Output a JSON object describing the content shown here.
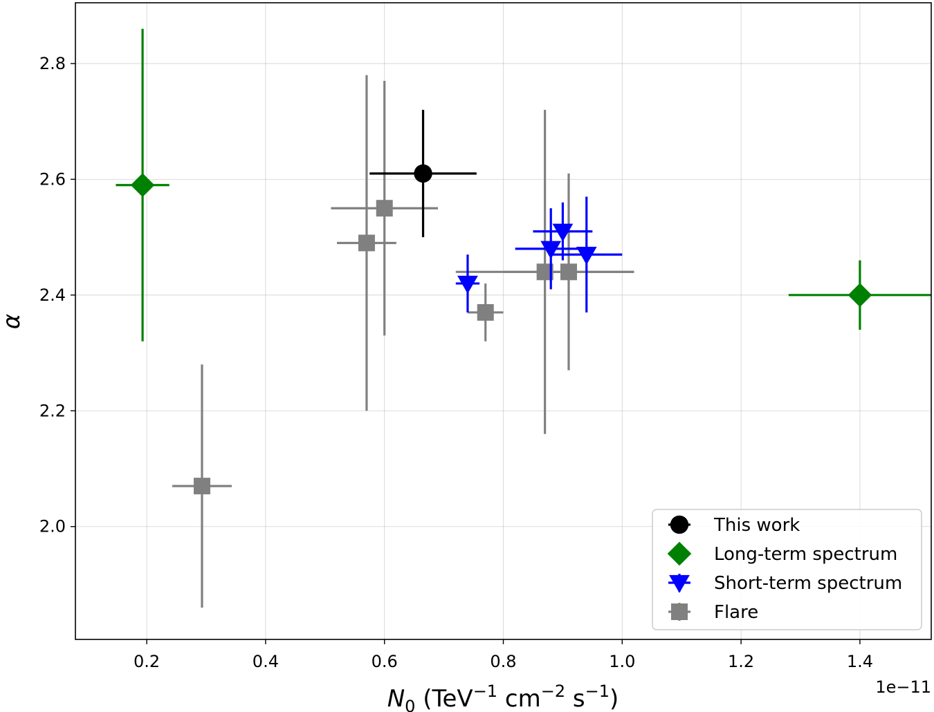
{
  "chart_data": {
    "type": "scatter",
    "title": "",
    "xlabel": {
      "base": "N",
      "sub": "0",
      "unit_parts": [
        {
          "text": " (TeV"
        },
        {
          "sup": "−1"
        },
        {
          "text": " cm"
        },
        {
          "sup": "−2"
        },
        {
          "text": " s"
        },
        {
          "sup": "−1"
        },
        {
          "text": ")"
        }
      ]
    },
    "ylabel": "α",
    "x_offset_label": "1e−11",
    "xlim": [
      0.08,
      1.52
    ],
    "ylim": [
      1.805,
      2.905
    ],
    "x_ticks": [
      0.2,
      0.4,
      0.6,
      0.8,
      1.0,
      1.2,
      1.4
    ],
    "x_tick_labels": [
      "0.2",
      "0.4",
      "0.6",
      "0.8",
      "1.0",
      "1.2",
      "1.4"
    ],
    "y_ticks": [
      2.0,
      2.2,
      2.4,
      2.6,
      2.8
    ],
    "y_tick_labels": [
      "2.0",
      "2.2",
      "2.4",
      "2.6",
      "2.8"
    ],
    "grid": true,
    "legend_position": "lower-right",
    "series": [
      {
        "name": "This work",
        "color": "#000000",
        "marker": "circle",
        "points": [
          {
            "x": 0.665,
            "y": 2.61,
            "xerr": 0.09,
            "yerr": 0.11
          }
        ]
      },
      {
        "name": "Long-term spectrum",
        "color": "#008000",
        "marker": "diamond",
        "points": [
          {
            "x": 0.193,
            "y": 2.59,
            "xerr": 0.045,
            "yerr_low": 0.27,
            "yerr_high": 0.27
          },
          {
            "x": 1.4,
            "y": 2.4,
            "xerr": 0.12,
            "yerr": 0.06
          }
        ]
      },
      {
        "name": "Short-term spectrum",
        "color": "#0000ff",
        "marker": "triangle-down",
        "points": [
          {
            "x": 0.74,
            "y": 2.42,
            "xerr": 0.02,
            "yerr": 0.05
          },
          {
            "x": 0.88,
            "y": 2.48,
            "xerr": 0.06,
            "yerr": 0.07
          },
          {
            "x": 0.9,
            "y": 2.51,
            "xerr": 0.05,
            "yerr": 0.05
          },
          {
            "x": 0.94,
            "y": 2.47,
            "xerr": 0.06,
            "yerr": 0.1
          }
        ]
      },
      {
        "name": "Flare",
        "color": "#808080",
        "marker": "square",
        "points": [
          {
            "x": 0.293,
            "y": 2.07,
            "xerr": 0.05,
            "yerr_low": 0.21,
            "yerr_high": 0.21
          },
          {
            "x": 0.57,
            "y": 2.49,
            "xerr": 0.05,
            "yerr_low": 0.29,
            "yerr_high": 0.29
          },
          {
            "x": 0.6,
            "y": 2.55,
            "xerr": 0.09,
            "yerr_low": 0.22,
            "yerr_high": 0.22
          },
          {
            "x": 0.77,
            "y": 2.37,
            "xerr": 0.03,
            "yerr": 0.05
          },
          {
            "x": 0.87,
            "y": 2.44,
            "xerr": 0.15,
            "yerr_low": 0.28,
            "yerr_high": 0.28
          },
          {
            "x": 0.91,
            "y": 2.44,
            "xerr": 0.11,
            "yerr_low": 0.17,
            "yerr_high": 0.17
          }
        ]
      }
    ]
  }
}
